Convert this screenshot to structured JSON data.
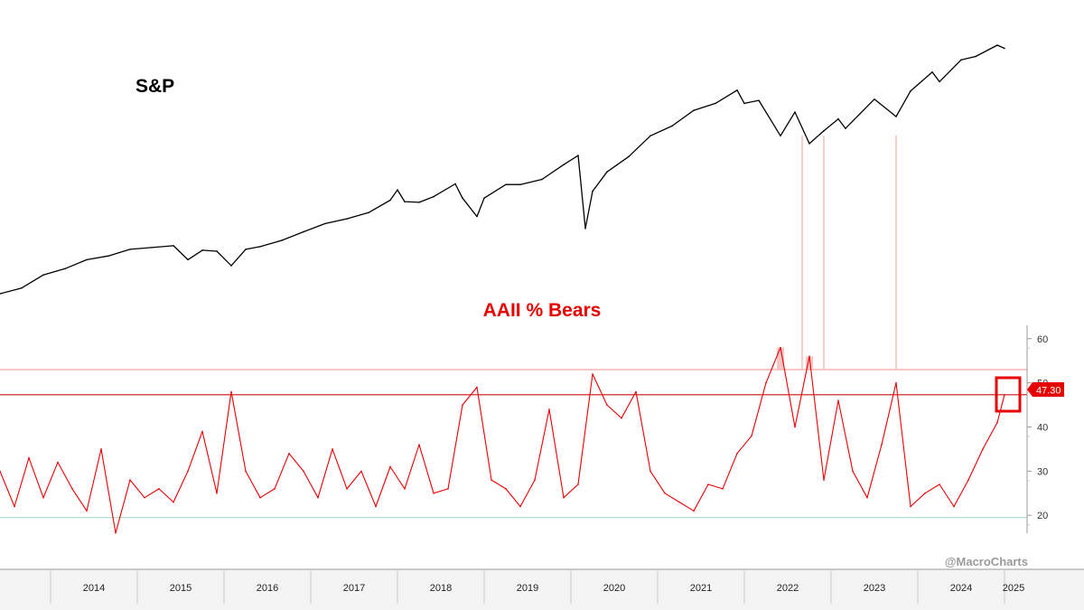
{
  "chart_data": [
    {
      "type": "line",
      "title": "S&P",
      "x_range": [
        "2013-06",
        "2025-02"
      ],
      "series": [
        {
          "color": "#000000",
          "x": [
            "2013-06",
            "2013-09",
            "2013-12",
            "2014-03",
            "2014-06",
            "2014-09",
            "2014-12",
            "2015-03",
            "2015-06",
            "2015-08",
            "2015-10",
            "2015-12",
            "2016-02",
            "2016-04",
            "2016-06",
            "2016-09",
            "2016-12",
            "2017-03",
            "2017-06",
            "2017-09",
            "2017-12",
            "2018-01",
            "2018-02",
            "2018-04",
            "2018-06",
            "2018-09",
            "2018-10",
            "2018-12",
            "2019-01",
            "2019-04",
            "2019-06",
            "2019-09",
            "2019-12",
            "2020-02",
            "2020-03",
            "2020-04",
            "2020-06",
            "2020-09",
            "2020-12",
            "2021-03",
            "2021-06",
            "2021-09",
            "2021-12",
            "2022-01",
            "2022-03",
            "2022-06",
            "2022-08",
            "2022-10",
            "2022-12",
            "2023-02",
            "2023-03",
            "2023-07",
            "2023-10",
            "2023-12",
            "2024-03",
            "2024-04",
            "2024-07",
            "2024-09",
            "2024-12",
            "2025-01"
          ],
          "values": [
            1630,
            1680,
            1800,
            1860,
            1950,
            1990,
            2060,
            2080,
            2100,
            1950,
            2050,
            2040,
            1890,
            2060,
            2090,
            2160,
            2260,
            2360,
            2420,
            2500,
            2670,
            2820,
            2650,
            2640,
            2720,
            2910,
            2700,
            2450,
            2700,
            2900,
            2900,
            2980,
            3220,
            3380,
            2300,
            2800,
            3100,
            3360,
            3750,
            3950,
            4290,
            4450,
            4770,
            4450,
            4520,
            3750,
            4250,
            3600,
            3850,
            4100,
            3900,
            4550,
            4150,
            4750,
            5250,
            4990,
            5600,
            5700,
            6050,
            5950
          ]
        }
      ]
    },
    {
      "type": "line",
      "title": "AAII % Bears",
      "x_range": [
        "2013-06",
        "2025-02"
      ],
      "x_ticks": [
        "2014",
        "2015",
        "2016",
        "2017",
        "2018",
        "2019",
        "2020",
        "2021",
        "2022",
        "2023",
        "2024",
        "2025"
      ],
      "y_ticks": [
        20,
        30,
        40,
        50,
        60
      ],
      "ylim": [
        18,
        62
      ],
      "grid": false,
      "last_value_label": "47.30",
      "reference_lines": [
        {
          "value": 53,
          "color": "#f4a3a3"
        },
        {
          "value": 47.3,
          "color": "#cc1111"
        },
        {
          "value": 19.5,
          "color": "#a8dcc4"
        }
      ],
      "vertical_markers": [
        "2022-09",
        "2022-12",
        "2023-10"
      ],
      "series": [
        {
          "color": "#e60000",
          "x": [
            "2013-06",
            "2013-08",
            "2013-10",
            "2013-12",
            "2014-02",
            "2014-04",
            "2014-06",
            "2014-08",
            "2014-10",
            "2014-12",
            "2015-02",
            "2015-04",
            "2015-06",
            "2015-08",
            "2015-10",
            "2015-12",
            "2016-02",
            "2016-04",
            "2016-06",
            "2016-08",
            "2016-10",
            "2016-12",
            "2017-02",
            "2017-04",
            "2017-06",
            "2017-08",
            "2017-10",
            "2017-12",
            "2018-02",
            "2018-04",
            "2018-06",
            "2018-08",
            "2018-10",
            "2018-12",
            "2019-02",
            "2019-04",
            "2019-06",
            "2019-08",
            "2019-10",
            "2019-12",
            "2020-02",
            "2020-04",
            "2020-06",
            "2020-08",
            "2020-10",
            "2020-12",
            "2021-02",
            "2021-04",
            "2021-06",
            "2021-08",
            "2021-10",
            "2021-12",
            "2022-02",
            "2022-04",
            "2022-06",
            "2022-08",
            "2022-10",
            "2022-12",
            "2023-02",
            "2023-04",
            "2023-06",
            "2023-08",
            "2023-10",
            "2023-12",
            "2024-02",
            "2024-04",
            "2024-06",
            "2024-08",
            "2024-10",
            "2024-12",
            "2025-01"
          ],
          "values": [
            30,
            22,
            33,
            24,
            32,
            26,
            21,
            35,
            16,
            28,
            24,
            26,
            23,
            30,
            39,
            25,
            48,
            30,
            24,
            26,
            34,
            30,
            24,
            35,
            26,
            30,
            22,
            31,
            26,
            36,
            25,
            26,
            45,
            49,
            28,
            26,
            22,
            28,
            44,
            24,
            27,
            52,
            45,
            42,
            48,
            30,
            25,
            23,
            21,
            27,
            26,
            34,
            38,
            50,
            58,
            40,
            56,
            28,
            46,
            30,
            24,
            36,
            50,
            22,
            25,
            27,
            22,
            28,
            35,
            41,
            47.3
          ]
        }
      ]
    }
  ],
  "watermark": "@MacroCharts",
  "colors": {
    "sp_line": "#000000",
    "bears_line": "#e60000",
    "bears_title": "#e60000",
    "last_label_bg": "#e60000",
    "highlight_box": "#e60000"
  }
}
